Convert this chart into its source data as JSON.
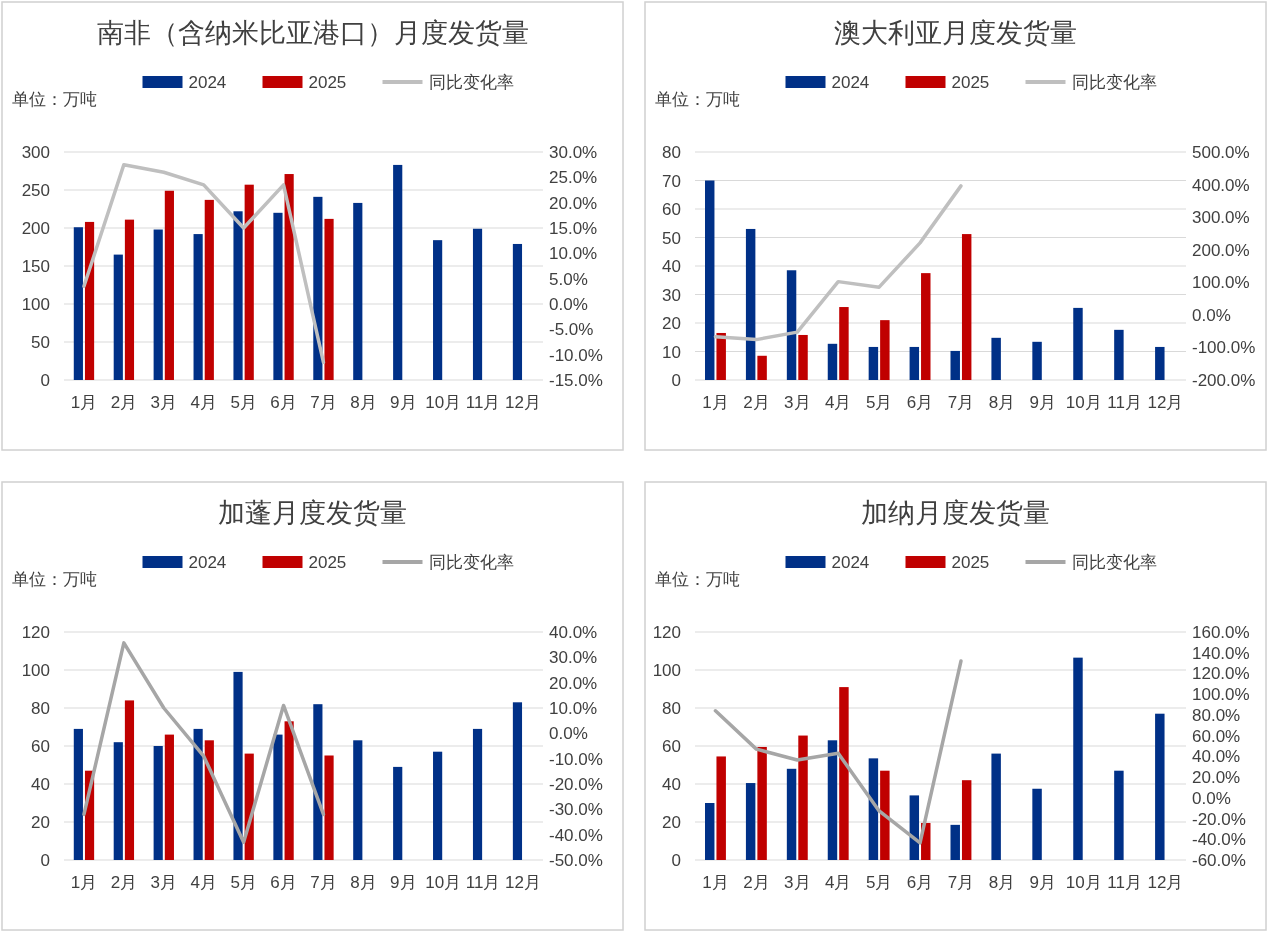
{
  "chart_data": [
    {
      "type": "bar",
      "title": "南非（含纳米比亚港口）月度发货量",
      "annotations": [
        "单位：万吨"
      ],
      "categories": [
        "1月",
        "2月",
        "3月",
        "4月",
        "5月",
        "6月",
        "7月",
        "8月",
        "9月",
        "10月",
        "11月",
        "12月"
      ],
      "series": [
        {
          "name": "2024",
          "color": "#003087",
          "values": [
            201,
            165,
            198,
            192,
            222,
            220,
            241,
            233,
            283,
            184,
            199,
            179
          ]
        },
        {
          "name": "2025",
          "color": "#c00000",
          "values": [
            208,
            211,
            249,
            237,
            257,
            271,
            212,
            null,
            null,
            null,
            null,
            null
          ]
        },
        {
          "name": "同比变化率",
          "type": "line",
          "axis": "y2",
          "color": "#bfbfbf",
          "values": [
            3.5,
            27.5,
            26,
            23.5,
            15,
            23.5,
            -11.5,
            null,
            null,
            null,
            null,
            null
          ]
        }
      ],
      "ylim": [
        0,
        300
      ],
      "yticks": [
        0,
        50,
        100,
        150,
        200,
        250,
        300
      ],
      "y2lim": [
        -15,
        30
      ],
      "y2ticks": [
        {
          "value": -15,
          "label": "-15.0%"
        },
        {
          "value": -10,
          "label": "-10.0%"
        },
        {
          "value": -5,
          "label": "-5.0%"
        },
        {
          "value": 0,
          "label": "0.0%"
        },
        {
          "value": 5,
          "label": "5.0%"
        },
        {
          "value": 10,
          "label": "10.0%"
        },
        {
          "value": 15,
          "label": "15.0%"
        },
        {
          "value": 20,
          "label": "20.0%"
        },
        {
          "value": 25,
          "label": "25.0%"
        },
        {
          "value": 30,
          "label": "30.0%"
        }
      ],
      "grid": "y",
      "legend": "top"
    },
    {
      "type": "bar",
      "title": "澳大利亚月度发货量",
      "annotations": [
        "单位：万吨"
      ],
      "categories": [
        "1月",
        "2月",
        "3月",
        "4月",
        "5月",
        "6月",
        "7月",
        "8月",
        "9月",
        "10月",
        "11月",
        "12月"
      ],
      "series": [
        {
          "name": "2024",
          "color": "#003087",
          "values": [
            70,
            53,
            38.5,
            12.7,
            11.6,
            11.6,
            10.2,
            14.8,
            13.4,
            25.3,
            17.6,
            11.6
          ]
        },
        {
          "name": "2025",
          "color": "#c00000",
          "values": [
            16.5,
            8.5,
            15.8,
            25.6,
            21,
            37.5,
            51.2,
            null,
            null,
            null,
            null,
            null
          ]
        },
        {
          "name": "同比变化率",
          "type": "line",
          "axis": "y2",
          "color": "#bfbfbf",
          "values": [
            -67,
            -76,
            -53,
            102,
            85,
            221,
            396,
            null,
            null,
            null,
            null,
            null
          ]
        }
      ],
      "ylim": [
        0,
        80
      ],
      "yticks": [
        0,
        10,
        20,
        30,
        40,
        50,
        60,
        70,
        80
      ],
      "y2lim": [
        -200,
        500
      ],
      "y2ticks": [
        {
          "value": -200,
          "label": "-200.0%"
        },
        {
          "value": -100,
          "label": "-100.0%"
        },
        {
          "value": 0,
          "label": "0.0%"
        },
        {
          "value": 100,
          "label": "100.0%"
        },
        {
          "value": 200,
          "label": "200.0%"
        },
        {
          "value": 300,
          "label": "300.0%"
        },
        {
          "value": 400,
          "label": "400.0%"
        },
        {
          "value": 500,
          "label": "500.0%"
        }
      ],
      "grid": "y",
      "legend": "top"
    },
    {
      "type": "bar",
      "title": "加蓬月度发货量",
      "annotations": [
        "单位：万吨"
      ],
      "categories": [
        "1月",
        "2月",
        "3月",
        "4月",
        "5月",
        "6月",
        "7月",
        "8月",
        "9月",
        "10月",
        "11月",
        "12月"
      ],
      "series": [
        {
          "name": "2024",
          "color": "#003087",
          "values": [
            69,
            62,
            60,
            69,
            99,
            66,
            82,
            63,
            49,
            57,
            69,
            83
          ]
        },
        {
          "name": "2025",
          "color": "#c00000",
          "values": [
            47,
            84,
            66,
            63,
            56,
            73,
            55,
            null,
            null,
            null,
            null,
            null
          ]
        },
        {
          "name": "同比变化率",
          "type": "line",
          "axis": "y2",
          "color": "#a6a6a6",
          "values": [
            -32,
            35.7,
            10,
            -9,
            -43,
            11,
            -32,
            null,
            null,
            null,
            null,
            null
          ]
        }
      ],
      "ylim": [
        0,
        120
      ],
      "yticks": [
        0,
        20,
        40,
        60,
        80,
        100,
        120
      ],
      "y2lim": [
        -50,
        40
      ],
      "y2ticks": [
        {
          "value": -50,
          "label": "-50.0%"
        },
        {
          "value": -40,
          "label": "-40.0%"
        },
        {
          "value": -30,
          "label": "-30.0%"
        },
        {
          "value": -20,
          "label": "-20.0%"
        },
        {
          "value": -10,
          "label": "-10.0%"
        },
        {
          "value": 0,
          "label": "0.0%"
        },
        {
          "value": 10,
          "label": "10.0%"
        },
        {
          "value": 20,
          "label": "20.0%"
        },
        {
          "value": 30,
          "label": "30.0%"
        },
        {
          "value": 40,
          "label": "40.0%"
        }
      ],
      "grid": "y",
      "legend": "top"
    },
    {
      "type": "bar",
      "title": "加纳月度发货量",
      "annotations": [
        "单位：万吨"
      ],
      "categories": [
        "1月",
        "2月",
        "3月",
        "4月",
        "5月",
        "6月",
        "7月",
        "8月",
        "9月",
        "10月",
        "11月",
        "12月"
      ],
      "series": [
        {
          "name": "2024",
          "color": "#003087",
          "values": [
            30,
            40.5,
            48,
            63,
            53.5,
            34,
            18.5,
            56,
            37.5,
            106.5,
            47,
            77
          ]
        },
        {
          "name": "2025",
          "color": "#c00000",
          "values": [
            54.5,
            59.5,
            65.5,
            91,
            47,
            19.5,
            42,
            null,
            null,
            null,
            null,
            null
          ]
        },
        {
          "name": "同比变化率",
          "type": "line",
          "axis": "y2",
          "color": "#a6a6a6",
          "values": [
            84,
            47,
            36.5,
            43,
            -12.7,
            -43.5,
            132,
            null,
            null,
            null,
            null,
            null
          ]
        }
      ],
      "ylim": [
        0,
        120
      ],
      "yticks": [
        0,
        20,
        40,
        60,
        80,
        100,
        120
      ],
      "y2lim": [
        -60,
        160
      ],
      "y2ticks": [
        {
          "value": -60,
          "label": "-60.0%"
        },
        {
          "value": -40,
          "label": "-40.0%"
        },
        {
          "value": -20,
          "label": "-20.0%"
        },
        {
          "value": 0,
          "label": "0.0%"
        },
        {
          "value": 20,
          "label": "20.0%"
        },
        {
          "value": 40,
          "label": "40.0%"
        },
        {
          "value": 60,
          "label": "60.0%"
        },
        {
          "value": 80,
          "label": "80.0%"
        },
        {
          "value": 100,
          "label": "100.0%"
        },
        {
          "value": 120,
          "label": "120.0%"
        },
        {
          "value": 140,
          "label": "140.0%"
        },
        {
          "value": 160,
          "label": "160.0%"
        }
      ],
      "grid": "y",
      "legend": "top"
    }
  ]
}
